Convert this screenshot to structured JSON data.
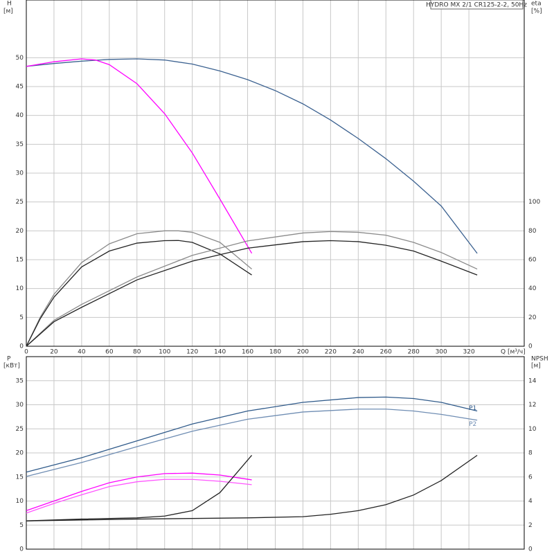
{
  "chart_data": [
    {
      "type": "line",
      "title": "HYDRO MX 2/1 CR125-2-2, 50Hz",
      "y_label": "H",
      "y_unit": "[м]",
      "y2_label": "eta",
      "y2_unit": "[%]",
      "x_label": "Q [м³/ч]",
      "xlim": [
        0,
        360
      ],
      "xticks": [
        0,
        20,
        40,
        60,
        80,
        100,
        120,
        140,
        160,
        180,
        200,
        220,
        240,
        260,
        280,
        300,
        320
      ],
      "ylim": [
        0,
        60
      ],
      "yticks": [
        0,
        5,
        10,
        15,
        20,
        25,
        30,
        35,
        40,
        45,
        50
      ],
      "y2lim": [
        0,
        240
      ],
      "y2ticks": [
        0,
        20,
        40,
        60,
        80,
        100
      ],
      "grid": true,
      "series": [
        {
          "color": "#3b6190",
          "x": [
            0,
            20,
            40,
            60,
            80,
            100,
            120,
            140,
            160,
            180,
            200,
            220,
            240,
            260,
            280,
            300,
            326
          ],
          "values": [
            48.5,
            49,
            49.4,
            49.7,
            49.8,
            49.6,
            48.9,
            47.7,
            46.2,
            44.3,
            42,
            39.2,
            36,
            32.5,
            28.6,
            24.3,
            16.1
          ]
        },
        {
          "color": "#ff00ff",
          "x": [
            0,
            20,
            40,
            50,
            60,
            80,
            100,
            120,
            140,
            163
          ],
          "values": [
            48.5,
            49.3,
            49.8,
            49.6,
            48.8,
            45.5,
            40.3,
            33.5,
            25.5,
            16.1
          ]
        },
        {
          "color": "#8a8a8a",
          "axis": "y2",
          "x": [
            0,
            10,
            20,
            40,
            60,
            80,
            100,
            110,
            120,
            140,
            163
          ],
          "values": [
            0,
            20,
            36,
            58,
            71,
            78,
            80,
            80,
            79,
            72,
            53.5
          ]
        },
        {
          "color": "#222222",
          "axis": "y2",
          "x": [
            0,
            10,
            20,
            40,
            60,
            80,
            100,
            110,
            120,
            140,
            163
          ],
          "values": [
            0,
            19,
            34,
            55,
            66,
            71.5,
            73.2,
            73.3,
            72,
            64,
            49.4
          ]
        },
        {
          "color": "#8a8a8a",
          "axis": "y2",
          "x": [
            0,
            20,
            40,
            80,
            120,
            160,
            200,
            220,
            240,
            260,
            280,
            300,
            326
          ],
          "values": [
            0,
            18,
            29,
            48,
            63,
            73,
            78.5,
            79.5,
            79,
            77,
            72,
            65,
            53.5
          ]
        },
        {
          "color": "#222222",
          "axis": "y2",
          "x": [
            0,
            20,
            40,
            80,
            120,
            160,
            200,
            220,
            240,
            260,
            280,
            300,
            326
          ],
          "values": [
            0,
            17,
            27,
            46,
            59,
            68,
            72.5,
            73.2,
            72.5,
            70,
            66,
            59,
            49.4
          ]
        }
      ]
    },
    {
      "type": "line",
      "y_label": "P",
      "y_unit": "[кВт]",
      "y2_label": "NPSH",
      "y2_unit": "[м]",
      "xlim": [
        0,
        360
      ],
      "xticks": [
        0,
        20,
        40,
        60,
        80,
        100,
        120,
        140,
        160,
        180,
        200,
        220,
        240,
        260,
        280,
        300,
        320
      ],
      "ylim": [
        0,
        40
      ],
      "yticks": [
        0,
        5,
        10,
        15,
        20,
        25,
        30,
        35
      ],
      "y2lim": [
        0,
        16
      ],
      "y2ticks": [
        0,
        2,
        4,
        6,
        8,
        10,
        12,
        14
      ],
      "grid": true,
      "series": [
        {
          "name": "P1",
          "color": "#2f5a8a",
          "x": [
            0,
            40,
            80,
            120,
            160,
            200,
            240,
            260,
            280,
            300,
            326
          ],
          "values": [
            16,
            19,
            22.5,
            26,
            28.7,
            30.5,
            31.5,
            31.6,
            31.3,
            30.5,
            28.7
          ]
        },
        {
          "name": "P2",
          "color": "#6f8db3",
          "x": [
            0,
            40,
            80,
            120,
            160,
            200,
            240,
            260,
            280,
            300,
            326
          ],
          "values": [
            15.1,
            18,
            21.3,
            24.5,
            27,
            28.5,
            29.1,
            29.1,
            28.7,
            28,
            26.8
          ]
        },
        {
          "color": "#ff00ff",
          "x": [
            0,
            20,
            40,
            60,
            80,
            100,
            120,
            140,
            163
          ],
          "values": [
            8,
            10,
            12,
            13.8,
            15,
            15.7,
            15.8,
            15.4,
            14.4
          ]
        },
        {
          "color": "#ff55ff",
          "x": [
            0,
            20,
            40,
            60,
            80,
            100,
            120,
            140,
            163
          ],
          "values": [
            7.5,
            9.5,
            11.3,
            13,
            14,
            14.5,
            14.5,
            14.1,
            13.4
          ]
        },
        {
          "color": "#222222",
          "axis": "y2",
          "x": [
            0,
            40,
            80,
            100,
            120,
            140,
            163
          ],
          "values": [
            2.35,
            2.5,
            2.6,
            2.75,
            3.2,
            4.7,
            7.8
          ]
        },
        {
          "color": "#222222",
          "axis": "y2",
          "x": [
            0,
            80,
            160,
            200,
            220,
            240,
            260,
            280,
            300,
            326
          ],
          "values": [
            2.35,
            2.5,
            2.6,
            2.7,
            2.9,
            3.2,
            3.7,
            4.5,
            5.7,
            7.8
          ]
        }
      ]
    }
  ]
}
